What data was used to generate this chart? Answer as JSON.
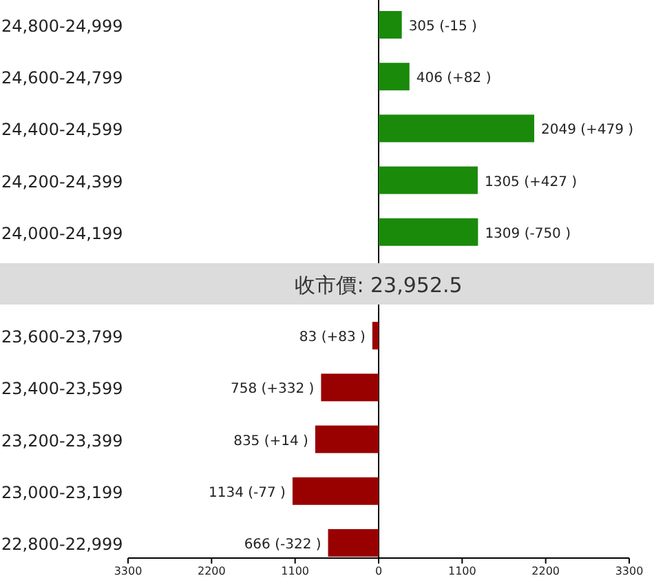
{
  "chart_data": {
    "type": "bar",
    "orientation": "horizontal",
    "categories": [
      "24,800-24,999",
      "24,600-24,799",
      "24,400-24,599",
      "24,200-24,399",
      "24,000-24,199",
      null,
      "23,600-23,799",
      "23,400-23,599",
      "23,200-23,399",
      "23,000-23,199",
      "22,800-22,999"
    ],
    "values": [
      305,
      406,
      2049,
      1305,
      1309,
      null,
      83,
      758,
      835,
      1134,
      666
    ],
    "base": [
      0,
      0,
      0,
      0,
      0,
      null,
      -83,
      -758,
      -835,
      -1134,
      -666
    ],
    "colors": [
      "#1a8a0a",
      "#1a8a0a",
      "#1a8a0a",
      "#1a8a0a",
      "#1a8a0a",
      null,
      "#990000",
      "#990000",
      "#990000",
      "#990000",
      "#990000"
    ],
    "value_labels": [
      "305 (-15 )",
      "406 (+82 )",
      "2049 (+479 )",
      "1305 (+427 )",
      "1309 (-750 )",
      null,
      "83 (+83 )",
      "758 (+332 )",
      "835 (+14 )",
      "1134 (-77 )",
      "666 (-322 )"
    ],
    "xlim": [
      -3300,
      3300
    ],
    "xticks": [
      {
        "value": -3300,
        "label": "3300"
      },
      {
        "value": -2200,
        "label": "2200"
      },
      {
        "value": -1100,
        "label": "1100"
      },
      0,
      1100,
      2200,
      3300
    ],
    "bands": [
      {
        "axis": "y",
        "from": "24,000-24,199",
        "to": "23,600-23,799",
        "label": "收市價: 23,952.5",
        "color": "#dcdcdc"
      }
    ]
  }
}
